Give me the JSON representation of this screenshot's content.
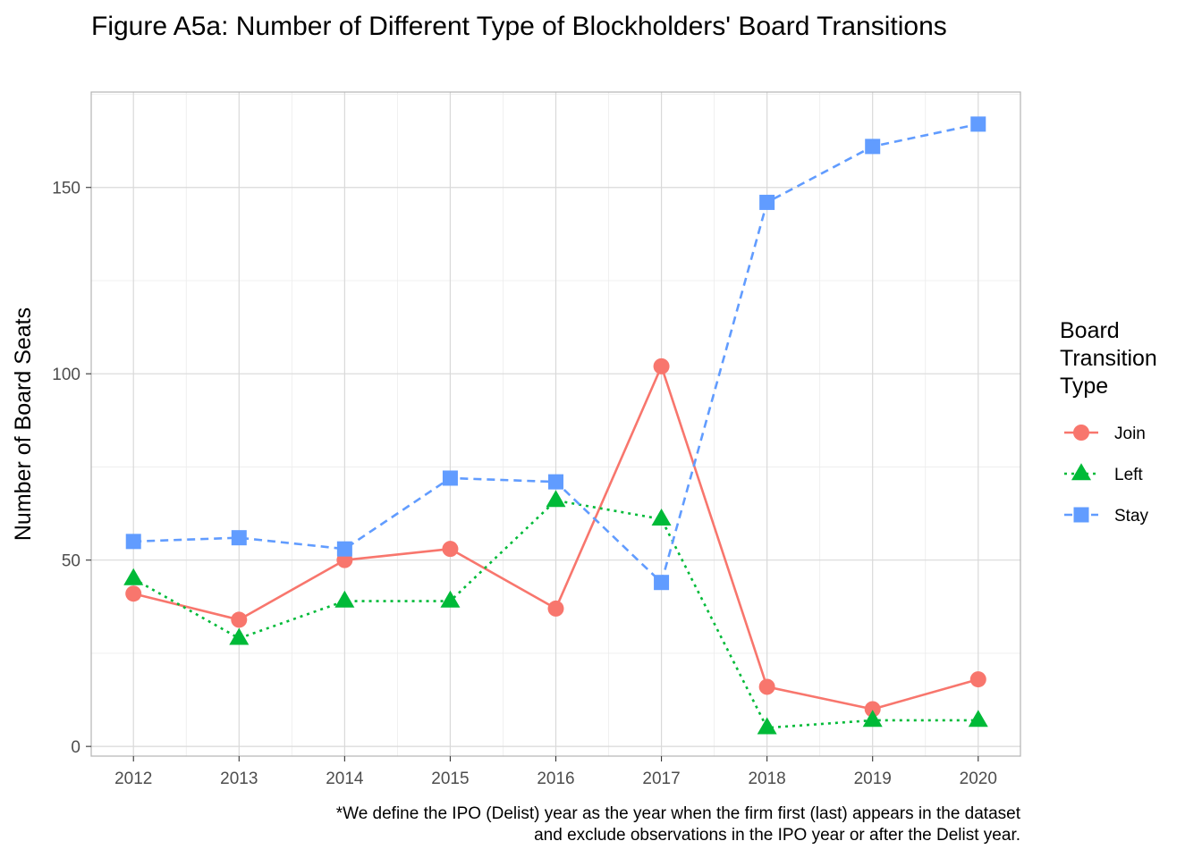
{
  "chart_data": {
    "type": "line",
    "title": "Figure A5a: Number of Different Type of Blockholders' Board Transitions",
    "xlabel": "",
    "ylabel": "Number of Board Seats",
    "x": [
      2012,
      2013,
      2014,
      2015,
      2016,
      2017,
      2018,
      2019,
      2020
    ],
    "xlim": [
      2011.6,
      2020.4
    ],
    "ylim": [
      -2.6,
      175.6
    ],
    "x_ticks": [
      "2012",
      "2013",
      "2014",
      "2015",
      "2016",
      "2017",
      "2018",
      "2019",
      "2020"
    ],
    "y_ticks": [
      "0",
      "50",
      "100",
      "150"
    ],
    "grid": true,
    "legend": {
      "title_lines": [
        "Board",
        "Transition",
        "Type"
      ],
      "position": "right"
    },
    "series": [
      {
        "name": "Join",
        "color": "#F8766D",
        "marker": "circle",
        "line": "solid",
        "values": [
          41,
          34,
          50,
          53,
          37,
          102,
          16,
          10,
          18
        ]
      },
      {
        "name": "Left",
        "color": "#00BA38",
        "marker": "triangle",
        "line": "dotted",
        "values": [
          45,
          29,
          39,
          39,
          66,
          61,
          5,
          7,
          7
        ]
      },
      {
        "name": "Stay",
        "color": "#619CFF",
        "marker": "square",
        "line": "dashed",
        "values": [
          55,
          56,
          53,
          72,
          71,
          44,
          146,
          161,
          167
        ]
      }
    ],
    "caption_lines": [
      "*We define the IPO (Delist) year as the year when the firm first (last) appears in the dataset",
      "and exclude observations in the IPO year or after the Delist year."
    ]
  }
}
